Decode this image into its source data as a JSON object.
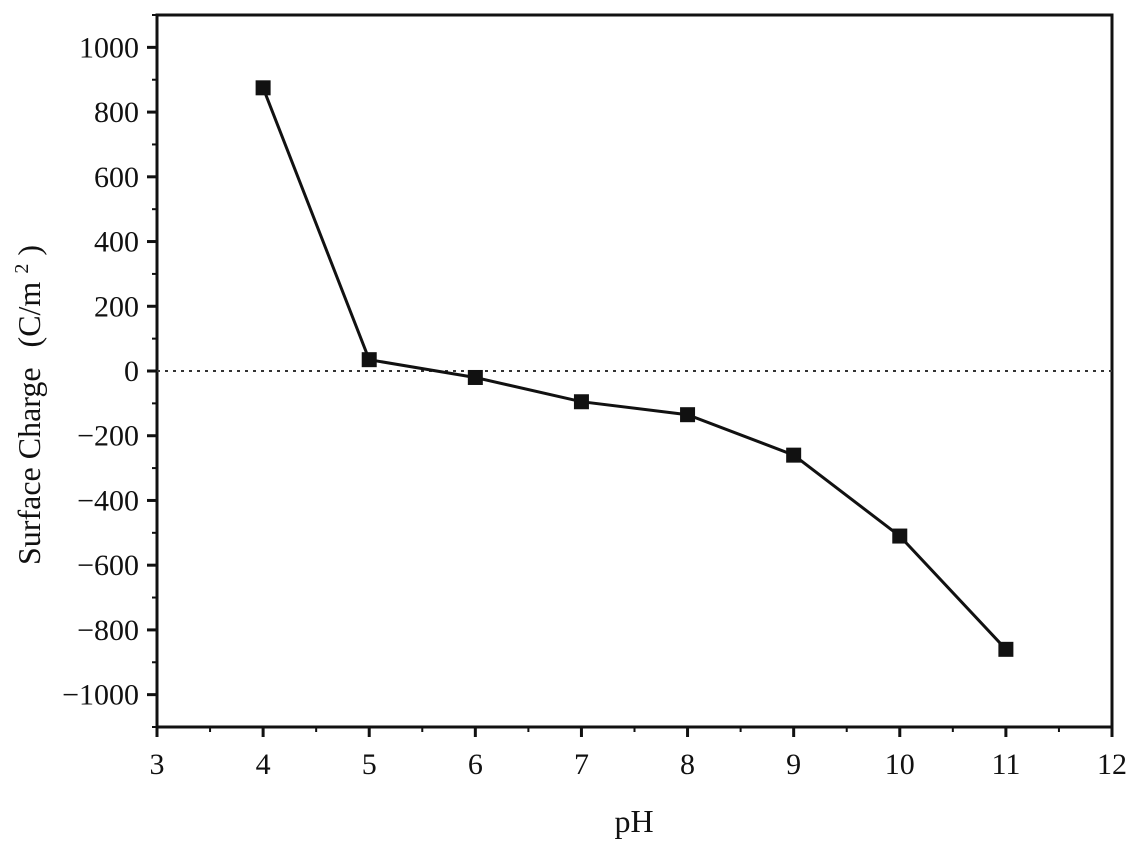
{
  "chart_data": {
    "type": "line",
    "title": "",
    "xlabel": "pH",
    "ylabel": "Surface Charge",
    "ylabel_unit_base": "(C/m",
    "ylabel_unit_exp": "2",
    "ylabel_unit_close": ")",
    "xlim": [
      3,
      12
    ],
    "ylim": [
      -1100,
      1100
    ],
    "xticks": [
      "3",
      "4",
      "5",
      "6",
      "7",
      "8",
      "9",
      "10",
      "11",
      "12"
    ],
    "yticks": [
      "1000",
      "800",
      "600",
      "400",
      "200",
      "0",
      "−200",
      "−400",
      "−600",
      "−800",
      "−1000"
    ],
    "ytick_values": [
      1000,
      800,
      600,
      400,
      200,
      0,
      -200,
      -400,
      -600,
      -800,
      -1000
    ],
    "xtick_values": [
      3,
      4,
      5,
      6,
      7,
      8,
      9,
      10,
      11,
      12
    ],
    "grid": false,
    "reference_line": {
      "y": 0,
      "style": "dotted"
    },
    "series": [
      {
        "marker": "square",
        "color": "#111111",
        "x": [
          4,
          5,
          6,
          7,
          8,
          9,
          10,
          11
        ],
        "y": [
          875,
          35,
          -20,
          -95,
          -135,
          -260,
          -510,
          -860
        ]
      }
    ]
  }
}
